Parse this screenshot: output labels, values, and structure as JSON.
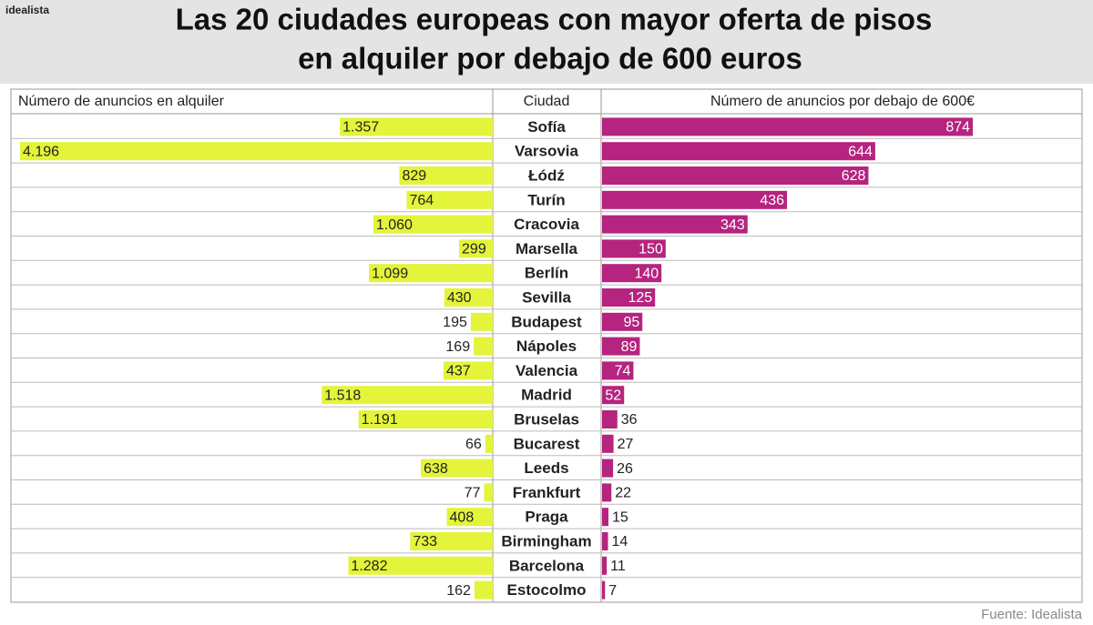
{
  "brand": "idealista",
  "chart_data": {
    "type": "butterfly",
    "title": [
      "Las 20 ciudades europeas con mayor oferta de pisos",
      "en alquiler por debajo de 600 euros"
    ],
    "category_label": "Ciudad",
    "categories": [
      "Sofía",
      "Varsovia",
      "Łódź",
      "Turín",
      "Cracovia",
      "Marsella",
      "Berlín",
      "Sevilla",
      "Budapest",
      "Nápoles",
      "Valencia",
      "Madrid",
      "Bruselas",
      "Bucarest",
      "Leeds",
      "Frankfurt",
      "Praga",
      "Birmingham",
      "Barcelona",
      "Estocolmo"
    ],
    "series": [
      {
        "name": "Número de anuncios en alquiler",
        "color": "#e3f43a",
        "side": "left",
        "values": [
          1357,
          4196,
          829,
          764,
          1060,
          299,
          1099,
          430,
          195,
          169,
          437,
          1518,
          1191,
          66,
          638,
          77,
          408,
          733,
          1282,
          162
        ],
        "value_labels": [
          "1.357",
          "4.196",
          "829",
          "764",
          "1.060",
          "299",
          "1.099",
          "430",
          "195",
          "169",
          "437",
          "1.518",
          "1.191",
          "66",
          "638",
          "77",
          "408",
          "733",
          "1.282",
          "162"
        ]
      },
      {
        "name": "Número de anuncios por debajo de 600€",
        "color": "#b5247f",
        "side": "right",
        "values": [
          874,
          644,
          628,
          436,
          343,
          150,
          140,
          125,
          95,
          89,
          74,
          52,
          36,
          27,
          26,
          22,
          15,
          14,
          11,
          7
        ]
      }
    ],
    "source": "Fuente: Idealista"
  }
}
